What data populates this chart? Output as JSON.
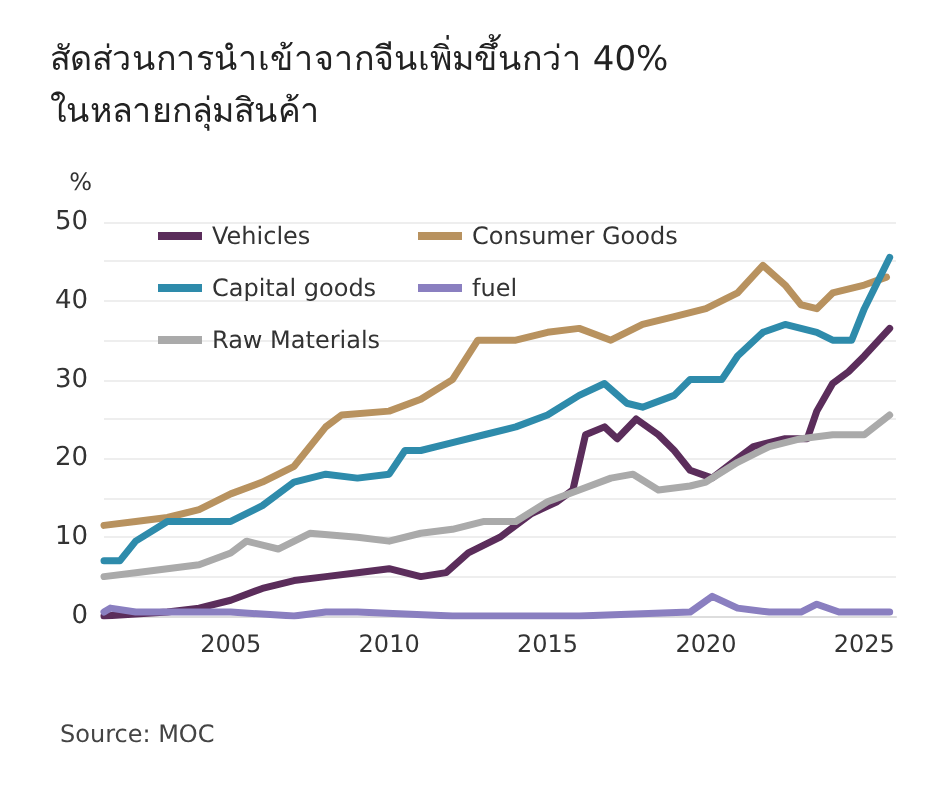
{
  "chart_data": {
    "type": "line",
    "title": "สัดส่วนการนำเข้าจากจีนเพิ่มขึ้นกว่า 40%\nในหลายกลุ่มสินค้า",
    "ylabel": "%",
    "annotations": [
      "Source: MOC"
    ],
    "xlim": [
      2001,
      2026
    ],
    "xticks": [
      2005,
      2010,
      2015,
      2020,
      2025
    ],
    "ylim": [
      0,
      50
    ],
    "yticks": [
      0,
      {
        "value": 5,
        "label": null
      },
      10,
      {
        "value": 15,
        "label": null
      },
      20,
      {
        "value": 25,
        "label": null
      },
      30,
      {
        "value": 35,
        "label": null
      },
      40,
      {
        "value": 45,
        "label": null
      },
      50
    ],
    "grid": "y",
    "legend": "top left",
    "marker": "none",
    "line_style": "solid",
    "series": [
      {
        "name": "Vehicles",
        "color": "#5b2d5b",
        "x": [
          2001,
          2003,
          2004,
          2005,
          2006,
          2007,
          2008,
          2009,
          2010,
          2011,
          2011.8,
          2012.5,
          2013.5,
          2014.5,
          2015.3,
          2015.8,
          2016.2,
          2016.8,
          2017.2,
          2017.8,
          2018.5,
          2019,
          2019.5,
          2020.2,
          2021,
          2021.5,
          2022.5,
          2023.2,
          2023.5,
          2024,
          2024.5,
          2025,
          2025.8
        ],
        "values": [
          0,
          0.5,
          1,
          2,
          3.5,
          4.5,
          5,
          5.5,
          6,
          5,
          5.5,
          8,
          10,
          13,
          14.5,
          16,
          23,
          24,
          22.5,
          25,
          23,
          21,
          18.5,
          17.5,
          20,
          21.5,
          22.5,
          22.5,
          26,
          29.5,
          31,
          33,
          36.5
        ]
      },
      {
        "name": "Consumer Goods",
        "color": "#b8925f",
        "x": [
          2001,
          2002,
          2003,
          2004,
          2005,
          2006,
          2007,
          2008,
          2008.5,
          2010,
          2011,
          2012,
          2012.8,
          2013,
          2014,
          2015,
          2016,
          2017,
          2018,
          2019,
          2020,
          2021,
          2021.8,
          2022.5,
          2023,
          2023.5,
          2024,
          2025,
          2025.7
        ],
        "values": [
          11.5,
          12,
          12.5,
          13.5,
          15.5,
          17,
          19,
          24,
          25.5,
          26,
          27.5,
          30,
          35,
          35,
          35,
          36,
          36.5,
          35,
          37,
          38,
          39,
          41,
          44.5,
          42,
          39.5,
          39,
          41,
          42,
          43
        ]
      },
      {
        "name": "Capital goods",
        "color": "#2e8bab",
        "x": [
          2001,
          2001.5,
          2002,
          2003,
          2004,
          2005,
          2006,
          2007,
          2008,
          2009,
          2010,
          2010.5,
          2011,
          2012,
          2013,
          2014,
          2015,
          2016,
          2016.8,
          2017.5,
          2018,
          2019,
          2019.5,
          2020.5,
          2021,
          2021.8,
          2022.5,
          2023.5,
          2024,
          2024.6,
          2025,
          2025.8
        ],
        "values": [
          7,
          7,
          9.5,
          12,
          12,
          12,
          14,
          17,
          18,
          17.5,
          18,
          21,
          21,
          22,
          23,
          24,
          25.5,
          28,
          29.5,
          27,
          26.5,
          28,
          30,
          30,
          33,
          36,
          37,
          36,
          35,
          35,
          39,
          45.5
        ]
      },
      {
        "name": "fuel",
        "color": "#8a7fc0",
        "x": [
          2001,
          2001.2,
          2002,
          2005,
          2007,
          2008,
          2009,
          2012,
          2016,
          2019.5,
          2020.2,
          2021,
          2022,
          2023,
          2023.5,
          2024.2,
          2025.8
        ],
        "values": [
          0.5,
          1,
          0.5,
          0.5,
          0,
          0.5,
          0.5,
          0,
          0,
          0.5,
          2.5,
          1,
          0.5,
          0.5,
          1.5,
          0.5,
          0.5
        ]
      },
      {
        "name": "Raw Materials",
        "color": "#aaaaaa",
        "x": [
          2001,
          2002,
          2003,
          2004,
          2005,
          2005.5,
          2006.5,
          2007.5,
          2009,
          2010,
          2011,
          2012,
          2013,
          2014,
          2015,
          2016,
          2017,
          2017.7,
          2018.5,
          2019.5,
          2020,
          2021,
          2022,
          2023,
          2024,
          2025,
          2025.8
        ],
        "values": [
          5,
          5.5,
          6,
          6.5,
          8,
          9.5,
          8.5,
          10.5,
          10,
          9.5,
          10.5,
          11,
          12,
          12,
          14.5,
          16,
          17.5,
          18,
          16,
          16.5,
          17,
          19.5,
          21.5,
          22.5,
          23,
          23,
          25.5
        ]
      }
    ]
  }
}
